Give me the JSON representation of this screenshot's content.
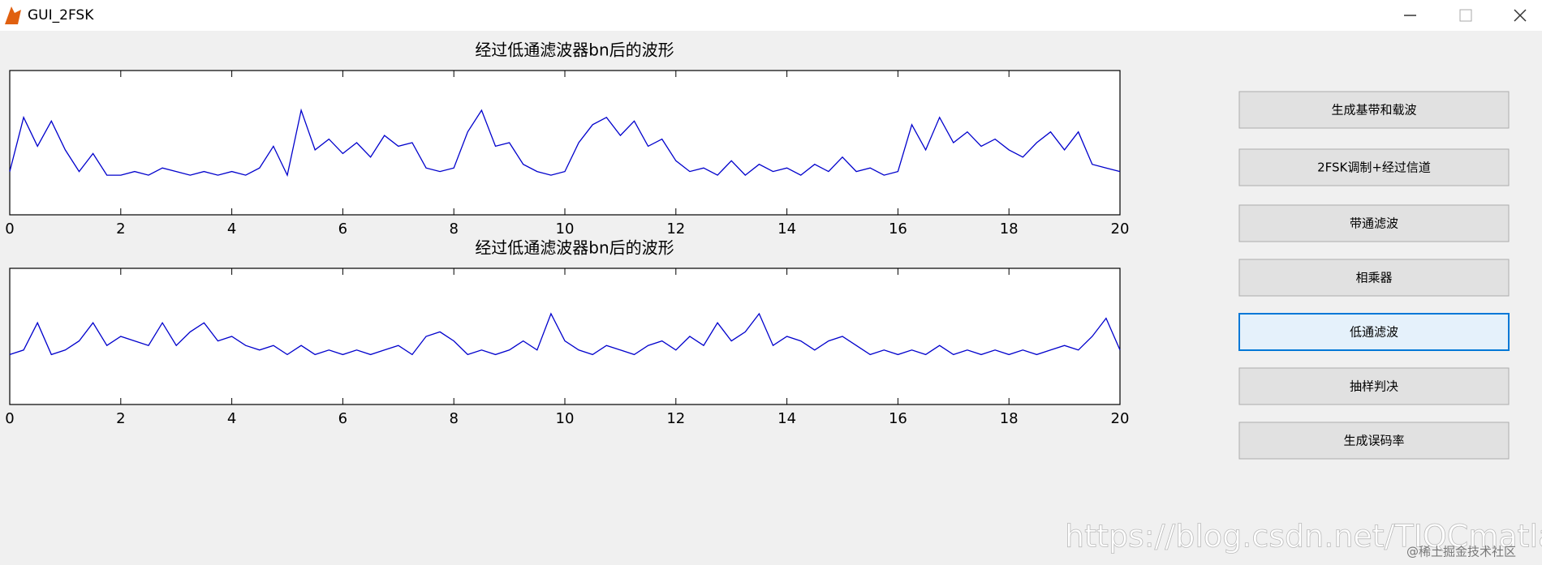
{
  "window": {
    "title": "GUI_2FSK"
  },
  "buttons": [
    "生成基带和载波",
    "2FSK调制+经过信道",
    "带通滤波",
    "相乘器",
    "低通滤波",
    "抽样判决",
    "生成误码率"
  ],
  "watermark": [
    "https://blog.csdn.net/TIQCmatlab",
    "@稀土掘金技术社区"
  ],
  "chart_data": [
    {
      "type": "line",
      "title": "经过低通滤波器bn后的波形",
      "color": "#0000cc",
      "xlim": [
        0,
        20
      ],
      "xticks": [
        0,
        2,
        4,
        6,
        8,
        10,
        12,
        14,
        16,
        18,
        20
      ],
      "ylim": [
        -1,
        3
      ],
      "x": [
        0,
        0.25,
        0.5,
        0.75,
        1,
        1.25,
        1.5,
        1.75,
        2,
        2.25,
        2.5,
        2.75,
        3,
        3.25,
        3.5,
        3.75,
        4,
        4.25,
        4.5,
        4.75,
        5,
        5.25,
        5.5,
        5.75,
        6,
        6.25,
        6.5,
        6.75,
        7,
        7.25,
        7.5,
        7.75,
        8,
        8.25,
        8.5,
        8.75,
        9,
        9.25,
        9.5,
        9.75,
        10,
        10.25,
        10.5,
        10.75,
        11,
        11.25,
        11.5,
        11.75,
        12,
        12.25,
        12.5,
        12.75,
        13,
        13.25,
        13.5,
        13.75,
        14,
        14.25,
        14.5,
        14.75,
        15,
        15.25,
        15.5,
        15.75,
        16,
        16.25,
        16.5,
        16.75,
        17,
        17.25,
        17.5,
        17.75,
        18,
        18.25,
        18.5,
        18.75,
        19,
        19.25,
        19.5,
        19.75,
        20
      ],
      "values": [
        0.2,
        1.7,
        0.9,
        1.6,
        0.8,
        0.2,
        0.7,
        0.1,
        0.1,
        0.2,
        0.1,
        0.3,
        0.2,
        0.1,
        0.2,
        0.1,
        0.2,
        0.1,
        0.3,
        0.9,
        0.1,
        1.9,
        0.8,
        1.1,
        0.7,
        1.0,
        0.6,
        1.2,
        0.9,
        1.0,
        0.3,
        0.2,
        0.3,
        1.3,
        1.9,
        0.9,
        1.0,
        0.4,
        0.2,
        0.1,
        0.2,
        1.0,
        1.5,
        1.7,
        1.2,
        1.6,
        0.9,
        1.1,
        0.5,
        0.2,
        0.3,
        0.1,
        0.5,
        0.1,
        0.4,
        0.2,
        0.3,
        0.1,
        0.4,
        0.2,
        0.6,
        0.2,
        0.3,
        0.1,
        0.2,
        1.5,
        0.8,
        1.7,
        1.0,
        1.3,
        0.9,
        1.1,
        0.8,
        0.6,
        1.0,
        1.3,
        0.8,
        1.3,
        0.4,
        0.3,
        0.2
      ]
    },
    {
      "type": "line",
      "title": "经过低通滤波器bn后的波形",
      "color": "#0000cc",
      "xlim": [
        0,
        20
      ],
      "xticks": [
        0,
        2,
        4,
        6,
        8,
        10,
        12,
        14,
        16,
        18,
        20
      ],
      "ylim": [
        -1,
        2
      ],
      "x": [
        0,
        0.25,
        0.5,
        0.75,
        1,
        1.25,
        1.5,
        1.75,
        2,
        2.25,
        2.5,
        2.75,
        3,
        3.25,
        3.5,
        3.75,
        4,
        4.25,
        4.5,
        4.75,
        5,
        5.25,
        5.5,
        5.75,
        6,
        6.25,
        6.5,
        6.75,
        7,
        7.25,
        7.5,
        7.75,
        8,
        8.25,
        8.5,
        8.75,
        9,
        9.25,
        9.5,
        9.75,
        10,
        10.25,
        10.5,
        10.75,
        11,
        11.25,
        11.5,
        11.75,
        12,
        12.25,
        12.5,
        12.75,
        13,
        13.25,
        13.5,
        13.75,
        14,
        14.25,
        14.5,
        14.75,
        15,
        15.25,
        15.5,
        15.75,
        16,
        16.25,
        16.5,
        16.75,
        17,
        17.25,
        17.5,
        17.75,
        18,
        18.25,
        18.5,
        18.75,
        19,
        19.25,
        19.5,
        19.75,
        20
      ],
      "values": [
        0.1,
        0.2,
        0.8,
        0.1,
        0.2,
        0.4,
        0.8,
        0.3,
        0.5,
        0.4,
        0.3,
        0.8,
        0.3,
        0.6,
        0.8,
        0.4,
        0.5,
        0.3,
        0.2,
        0.3,
        0.1,
        0.3,
        0.1,
        0.2,
        0.1,
        0.2,
        0.1,
        0.2,
        0.3,
        0.1,
        0.5,
        0.6,
        0.4,
        0.1,
        0.2,
        0.1,
        0.2,
        0.4,
        0.2,
        1.0,
        0.4,
        0.2,
        0.1,
        0.3,
        0.2,
        0.1,
        0.3,
        0.4,
        0.2,
        0.5,
        0.3,
        0.8,
        0.4,
        0.6,
        1.0,
        0.3,
        0.5,
        0.4,
        0.2,
        0.4,
        0.5,
        0.3,
        0.1,
        0.2,
        0.1,
        0.2,
        0.1,
        0.3,
        0.1,
        0.2,
        0.1,
        0.2,
        0.1,
        0.2,
        0.1,
        0.2,
        0.3,
        0.2,
        0.5,
        0.9,
        0.2
      ]
    }
  ]
}
